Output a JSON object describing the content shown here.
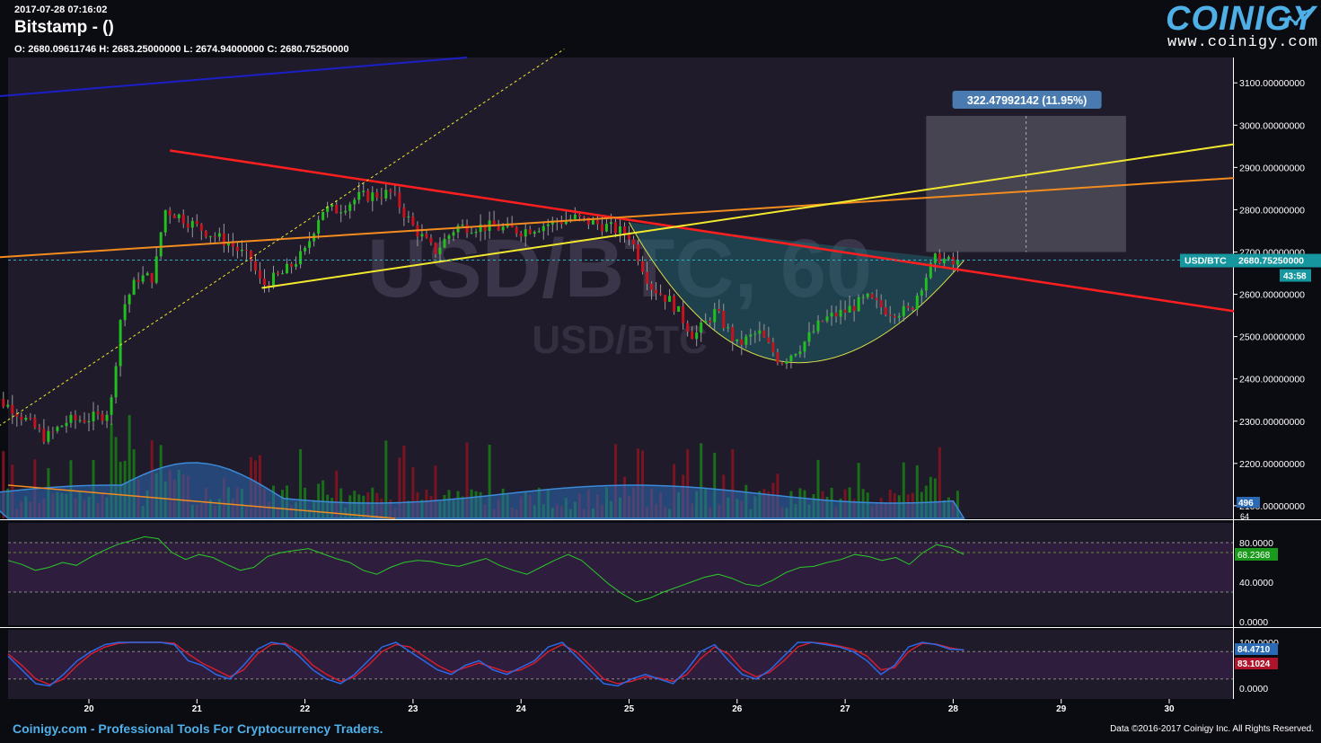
{
  "header": {
    "timestamp": "2017-07-28 07:16:02",
    "title": "Bitstamp -  ()",
    "ohlc": "O: 2680.09611746 H: 2683.25000000 L: 2674.94000000 C: 2680.75250000"
  },
  "logo": {
    "name": "COINIGY",
    "url": "www.coinigy.com"
  },
  "watermark": {
    "large": "USD/BTC, 60",
    "small": "USD/BTC"
  },
  "footer": {
    "left": "Coinigy.com - Professional Tools For Cryptocurrency Traders.",
    "right": "Data ©2016-2017 Coinigy Inc. All Rights Reserved."
  },
  "colors": {
    "background": "#1f1b2b",
    "up": "#22c01e",
    "down": "#c8121e",
    "accent": "#4fb0e8"
  },
  "chart_data": [
    {
      "type": "candlestick",
      "pair": "USD/BTC",
      "interval": "60",
      "x_ticks": [
        "20",
        "21",
        "22",
        "23",
        "24",
        "25",
        "26",
        "27",
        "28",
        "29",
        "30"
      ],
      "y_ticks": [
        "2100.00000000",
        "2200.00000000",
        "2300.00000000",
        "2400.00000000",
        "2500.00000000",
        "2600.00000000",
        "2700.00000000",
        "2800.00000000",
        "2900.00000000",
        "3000.00000000",
        "3100.00000000"
      ],
      "ylim": [
        2070,
        3160
      ],
      "last_price_label": "USD/BTC",
      "last_price": "2680.75250000",
      "countdown": "43:58",
      "measure_label": "322.47992142 (11.95%)",
      "path": [
        [
          19.0,
          2370
        ],
        [
          19.3,
          2330
        ],
        [
          19.6,
          2260
        ],
        [
          19.8,
          2300
        ],
        [
          20.1,
          2310
        ],
        [
          20.2,
          2330
        ],
        [
          20.3,
          2560
        ],
        [
          20.45,
          2640
        ],
        [
          20.6,
          2640
        ],
        [
          20.7,
          2800
        ],
        [
          20.8,
          2790
        ],
        [
          21.0,
          2760
        ],
        [
          21.3,
          2720
        ],
        [
          21.5,
          2680
        ],
        [
          21.6,
          2620
        ],
        [
          21.8,
          2650
        ],
        [
          22.0,
          2700
        ],
        [
          22.15,
          2800
        ],
        [
          22.3,
          2800
        ],
        [
          22.5,
          2830
        ],
        [
          22.8,
          2840
        ],
        [
          23.0,
          2760
        ],
        [
          23.2,
          2700
        ],
        [
          23.4,
          2760
        ],
        [
          23.7,
          2760
        ],
        [
          24.0,
          2750
        ],
        [
          24.3,
          2770
        ],
        [
          24.5,
          2780
        ],
        [
          24.8,
          2760
        ],
        [
          25.0,
          2740
        ],
        [
          25.2,
          2620
        ],
        [
          25.4,
          2580
        ],
        [
          25.6,
          2500
        ],
        [
          25.8,
          2560
        ],
        [
          26.0,
          2480
        ],
        [
          26.2,
          2510
        ],
        [
          26.4,
          2440
        ],
        [
          26.6,
          2480
        ],
        [
          26.8,
          2540
        ],
        [
          27.0,
          2560
        ],
        [
          27.2,
          2590
        ],
        [
          27.4,
          2560
        ],
        [
          27.6,
          2560
        ],
        [
          27.7,
          2620
        ],
        [
          27.85,
          2690
        ],
        [
          28.0,
          2670
        ],
        [
          28.1,
          2680
        ]
      ],
      "volume_label": "496",
      "volume_label2": "64",
      "lines": [
        {
          "name": "red-trend",
          "color": "#ff1f1f",
          "from": [
            20.75,
            2940
          ],
          "to": [
            30.6,
            2560
          ]
        },
        {
          "name": "orange-trend",
          "color": "#f28c1e",
          "from": [
            19.0,
            2685
          ],
          "to": [
            30.6,
            2875
          ]
        },
        {
          "name": "yellow-trend",
          "color": "#f2e92e",
          "from": [
            21.6,
            2615
          ],
          "to": [
            30.6,
            2955
          ]
        },
        {
          "name": "yellow-dashed",
          "color": "#f2e92e",
          "from": [
            19.0,
            2260
          ],
          "to": [
            24.4,
            3180
          ]
        },
        {
          "name": "blue-trend",
          "color": "#1a1fc8",
          "from": [
            19.0,
            3065
          ],
          "to": [
            23.5,
            3160
          ]
        }
      ],
      "cup": {
        "start": [
          25.0,
          2770
        ],
        "bottom": [
          26.35,
          2410
        ],
        "end": [
          28.1,
          2680
        ]
      },
      "measure_box": {
        "x1": 27.75,
        "x2": 29.6,
        "y1": 2700,
        "y2": 3022
      }
    },
    {
      "type": "line",
      "name": "oscillator-1",
      "y_ticks": [
        "0.0000",
        "40.0000",
        "80.0000"
      ],
      "current": "68.2368",
      "ylim": [
        0,
        100
      ],
      "bands": [
        30,
        70,
        80
      ],
      "values": [
        62,
        58,
        52,
        55,
        60,
        57,
        65,
        72,
        78,
        82,
        86,
        84,
        70,
        63,
        68,
        65,
        58,
        52,
        55,
        66,
        70,
        72,
        74,
        69,
        64,
        60,
        52,
        48,
        55,
        60,
        62,
        61,
        58,
        56,
        60,
        64,
        57,
        52,
        48,
        55,
        62,
        68,
        62,
        50,
        38,
        28,
        20,
        24,
        30,
        35,
        40,
        45,
        48,
        44,
        38,
        36,
        42,
        50,
        55,
        56,
        60,
        63,
        68,
        66,
        62,
        65,
        58,
        70,
        78,
        75,
        68
      ]
    },
    {
      "type": "line",
      "name": "stochastic",
      "y_ticks": [
        "0.0000",
        "100.0000"
      ],
      "k_label": "84.4710",
      "d_label": "83.1024",
      "ylim": [
        0,
        100
      ],
      "k": [
        70,
        40,
        10,
        5,
        30,
        60,
        80,
        95,
        100,
        100,
        100,
        100,
        95,
        60,
        50,
        30,
        20,
        50,
        85,
        100,
        95,
        70,
        40,
        20,
        10,
        30,
        60,
        90,
        100,
        80,
        60,
        40,
        30,
        50,
        60,
        40,
        30,
        45,
        60,
        90,
        100,
        70,
        40,
        10,
        5,
        20,
        30,
        20,
        10,
        40,
        80,
        95,
        60,
        30,
        20,
        40,
        70,
        100,
        100,
        95,
        90,
        80,
        60,
        30,
        50,
        90,
        100,
        95,
        85,
        84
      ],
      "d": [
        75,
        50,
        20,
        8,
        20,
        50,
        75,
        90,
        98,
        100,
        100,
        100,
        98,
        75,
        55,
        40,
        25,
        40,
        75,
        95,
        98,
        80,
        50,
        30,
        15,
        25,
        50,
        80,
        95,
        90,
        70,
        50,
        35,
        45,
        55,
        45,
        35,
        40,
        55,
        80,
        95,
        80,
        50,
        20,
        10,
        15,
        25,
        22,
        15,
        30,
        65,
        90,
        75,
        40,
        25,
        35,
        60,
        90,
        100,
        98,
        92,
        85,
        70,
        40,
        45,
        80,
        98,
        96,
        88,
        83
      ]
    }
  ]
}
